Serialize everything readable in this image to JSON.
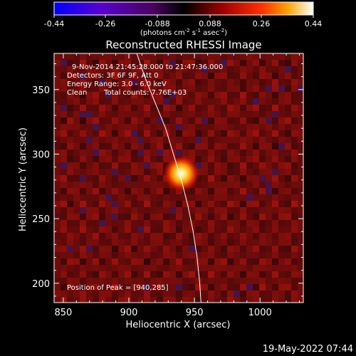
{
  "colorbar": {
    "tick_labels": [
      "-0.44",
      "-0.26",
      "-0.088",
      "0.088",
      "0.26",
      "0.44"
    ],
    "unit_label": "(photons cm",
    "unit_sup1": "-2",
    "unit_mid": " s",
    "unit_sup2": "-1",
    "unit_tail": " asec",
    "unit_sup3": "-2",
    "unit_close": ")",
    "range": [
      -0.44,
      0.44
    ]
  },
  "chart_data": {
    "type": "heatmap",
    "title": "Reconstructed RHESSI Image",
    "xlabel": "Heliocentric X (arcsec)",
    "ylabel": "Heliocentric Y (arcsec)",
    "xlim": [
      843,
      1033
    ],
    "ylim": [
      185,
      378
    ],
    "x_ticks": [
      850,
      900,
      950,
      1000
    ],
    "y_ticks": [
      200,
      250,
      300,
      350
    ],
    "peak": {
      "x": 940,
      "y": 285,
      "value": 0.44
    },
    "limb_curve": [
      [
        906,
        378
      ],
      [
        912,
        360
      ],
      [
        920,
        340
      ],
      [
        928,
        320
      ],
      [
        934,
        300
      ],
      [
        940,
        280
      ],
      [
        945,
        260
      ],
      [
        949,
        240
      ],
      [
        952,
        220
      ],
      [
        954,
        200
      ],
      [
        955,
        185
      ]
    ],
    "annotations": [
      "9-Nov-2014 21:45:28.000 to 21:47:36.000",
      "Detectors: 3F 6F 9F, Att 0",
      "Energy Range: 3.0 - 6.0 keV",
      "Clean",
      "Total counts: 7.76E+03"
    ],
    "peak_label": "Position of Peak = [940,285]"
  },
  "footer": {
    "timestamp": "19-May-2022 07:44"
  }
}
